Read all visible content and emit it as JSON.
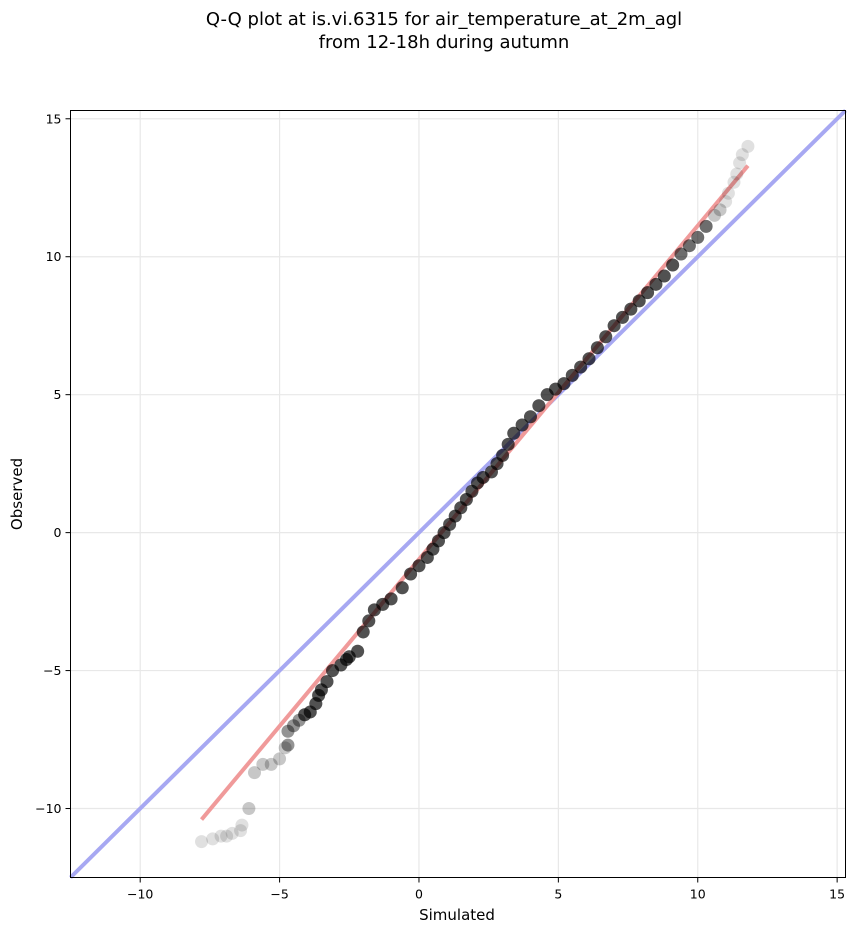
{
  "chart_data": {
    "type": "scatter",
    "title_line1": "Q-Q plot at is.vi.6315 for air_temperature_at_2m_agl",
    "title_line2": "from 12-18h during autumn",
    "xlabel": "Simulated",
    "ylabel": "Observed",
    "xlim": [
      -12.5,
      15.3
    ],
    "ylim": [
      -12.5,
      15.3
    ],
    "xticks": [
      -10,
      -5,
      0,
      5,
      10,
      15
    ],
    "yticks": [
      -10,
      -5,
      0,
      5,
      10,
      15
    ],
    "xtick_labels": [
      "−10",
      "−5",
      "0",
      "5",
      "10",
      "15"
    ],
    "ytick_labels": [
      "−10",
      "−5",
      "0",
      "5",
      "10",
      "15"
    ],
    "grid": true,
    "series": [
      {
        "kind": "quantiles",
        "color": "#000000",
        "points": [
          [
            -7.8,
            -11.2
          ],
          [
            -7.4,
            -11.1
          ],
          [
            -7.1,
            -11.0
          ],
          [
            -6.9,
            -11.0
          ],
          [
            -6.7,
            -10.9
          ],
          [
            -6.4,
            -10.8
          ],
          [
            -6.35,
            -10.6
          ],
          [
            -6.1,
            -10.0
          ],
          [
            -5.9,
            -8.7
          ],
          [
            -5.6,
            -8.4
          ],
          [
            -5.3,
            -8.4
          ],
          [
            -5.0,
            -8.2
          ],
          [
            -4.8,
            -7.8
          ],
          [
            -4.7,
            -7.7
          ],
          [
            -4.7,
            -7.2
          ],
          [
            -4.5,
            -7.0
          ],
          [
            -4.3,
            -6.8
          ],
          [
            -4.1,
            -6.6
          ],
          [
            -3.9,
            -6.5
          ],
          [
            -3.7,
            -6.2
          ],
          [
            -3.6,
            -5.9
          ],
          [
            -3.5,
            -5.7
          ],
          [
            -3.3,
            -5.4
          ],
          [
            -3.1,
            -5.0
          ],
          [
            -2.8,
            -4.8
          ],
          [
            -2.6,
            -4.6
          ],
          [
            -2.5,
            -4.5
          ],
          [
            -2.2,
            -4.3
          ],
          [
            -2.0,
            -3.6
          ],
          [
            -1.8,
            -3.2
          ],
          [
            -1.6,
            -2.8
          ],
          [
            -1.3,
            -2.6
          ],
          [
            -1.0,
            -2.4
          ],
          [
            -0.6,
            -2.0
          ],
          [
            -0.3,
            -1.5
          ],
          [
            0.0,
            -1.2
          ],
          [
            0.3,
            -0.9
          ],
          [
            0.5,
            -0.6
          ],
          [
            0.7,
            -0.3
          ],
          [
            0.9,
            0.0
          ],
          [
            1.1,
            0.3
          ],
          [
            1.3,
            0.6
          ],
          [
            1.5,
            0.9
          ],
          [
            1.7,
            1.2
          ],
          [
            1.9,
            1.5
          ],
          [
            2.1,
            1.8
          ],
          [
            2.3,
            2.0
          ],
          [
            2.6,
            2.2
          ],
          [
            2.8,
            2.5
          ],
          [
            3.0,
            2.8
          ],
          [
            3.2,
            3.2
          ],
          [
            3.4,
            3.6
          ],
          [
            3.7,
            3.9
          ],
          [
            4.0,
            4.2
          ],
          [
            4.3,
            4.6
          ],
          [
            4.6,
            5.0
          ],
          [
            4.9,
            5.2
          ],
          [
            5.2,
            5.4
          ],
          [
            5.5,
            5.7
          ],
          [
            5.8,
            6.0
          ],
          [
            6.1,
            6.3
          ],
          [
            6.4,
            6.7
          ],
          [
            6.7,
            7.1
          ],
          [
            7.0,
            7.5
          ],
          [
            7.3,
            7.8
          ],
          [
            7.6,
            8.1
          ],
          [
            7.9,
            8.4
          ],
          [
            8.2,
            8.7
          ],
          [
            8.5,
            9.0
          ],
          [
            8.8,
            9.3
          ],
          [
            9.1,
            9.7
          ],
          [
            9.4,
            10.1
          ],
          [
            9.7,
            10.4
          ],
          [
            10.0,
            10.7
          ],
          [
            10.3,
            11.1
          ],
          [
            10.6,
            11.5
          ],
          [
            10.8,
            11.7
          ],
          [
            11.0,
            12.0
          ],
          [
            11.1,
            12.3
          ],
          [
            11.3,
            12.7
          ],
          [
            11.4,
            13.0
          ],
          [
            11.5,
            13.4
          ],
          [
            11.6,
            13.7
          ],
          [
            11.8,
            14.0
          ]
        ]
      },
      {
        "kind": "fit-line",
        "color": "#f09a9a",
        "points": [
          [
            -7.8,
            -10.4
          ],
          [
            11.8,
            13.3
          ]
        ]
      },
      {
        "kind": "identity-line",
        "color": "#a7a8f2",
        "points": [
          [
            -12.5,
            -12.5
          ],
          [
            15.3,
            15.3
          ]
        ]
      }
    ]
  }
}
